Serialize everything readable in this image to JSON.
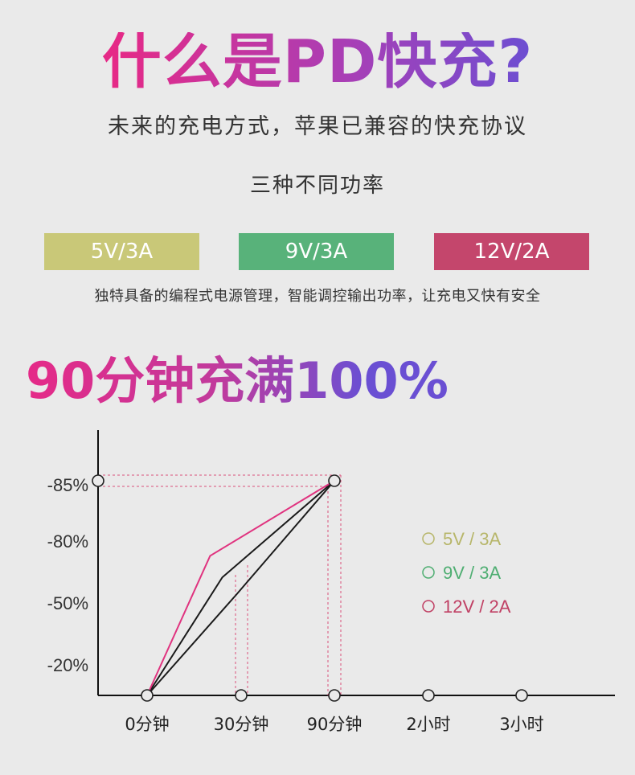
{
  "header": {
    "title": "什么是PD快充?",
    "subtitle": "未来的充电方式，苹果已兼容的快充协议",
    "powers_label": "三种不同功率"
  },
  "powers": [
    {
      "label": "5V/3A",
      "color": "#c9c878"
    },
    {
      "label": "9V/3A",
      "color": "#58b27a"
    },
    {
      "label": "12V/2A",
      "color": "#c4466c"
    }
  ],
  "description": "独特具备的编程式电源管理，智能调控输出功率，让充电又快有安全",
  "headline": "90分钟充满100%",
  "chart_data": {
    "type": "line",
    "categories": [
      "0分钟",
      "30分钟",
      "90分钟",
      "2小时",
      "3小时"
    ],
    "y_tick_labels": [
      "-20%",
      "-50%",
      "-80%",
      "-85%"
    ],
    "legend_position": "right",
    "series": [
      {
        "name": "5V / 3A",
        "color": "#b7b66a",
        "points": [
          [
            0,
            0
          ],
          [
            0.8,
            0.55
          ],
          [
            2,
            1
          ]
        ]
      },
      {
        "name": "9V / 3A",
        "color": "#4fae72",
        "points": [
          [
            0,
            0
          ],
          [
            0.95,
            0.47
          ],
          [
            2,
            1
          ]
        ]
      },
      {
        "name": "12V / 2A",
        "color": "#c04064",
        "points": [
          [
            0,
            0
          ],
          [
            0.67,
            0.65
          ],
          [
            2,
            1
          ]
        ]
      }
    ]
  }
}
